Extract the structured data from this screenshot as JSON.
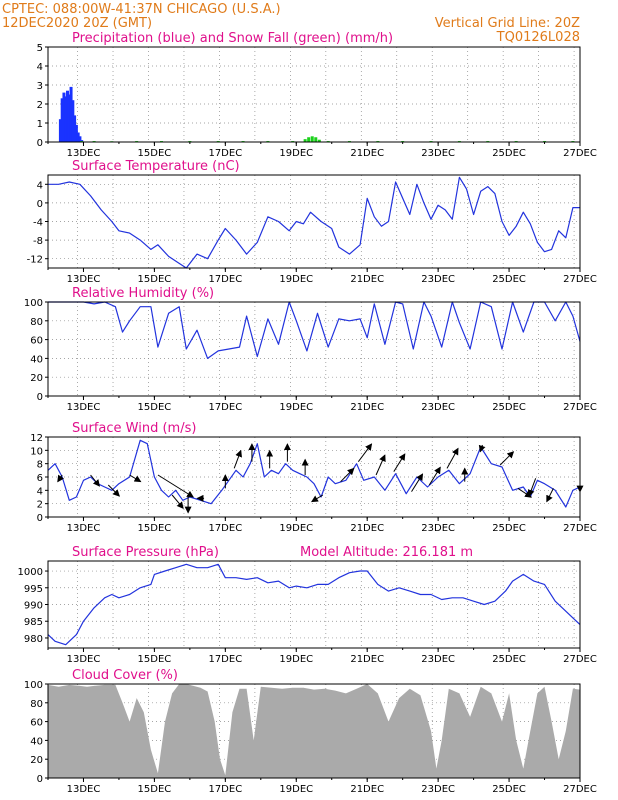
{
  "header": {
    "line1": "CPTEC:   088:00W-41:37N   CHICAGO (U.S.A.)",
    "line2": "12DEC2020 20Z (GMT)",
    "grid_line": "Vertical Grid Line: 20Z",
    "code": "TQ0126L028"
  },
  "colors": {
    "header": "#e07b1a",
    "title": "#e0108c",
    "line": "#2233dd",
    "precip": "#1a33ff",
    "snow": "#1bd11b",
    "cloud": "#aaaaaa"
  },
  "x_ticks": [
    "13DEC",
    "15DEC",
    "17DEC",
    "19DEC",
    "21DEC",
    "23DEC",
    "25DEC",
    "27DEC"
  ],
  "chart_data": [
    {
      "type": "bar",
      "title": "Precipitation (blue) and Snow Fall (green) (mm/h)",
      "ylim": [
        0,
        5
      ],
      "yticks": [
        0,
        1,
        2,
        3,
        4,
        5
      ],
      "series": [
        {
          "name": "Precipitation (blue)",
          "color": "#1a33ff",
          "x": [
            12.35,
            12.4,
            12.45,
            12.5,
            12.55,
            12.6,
            12.65,
            12.7,
            12.75,
            12.8,
            12.85,
            12.9,
            12.95
          ],
          "values": [
            1.2,
            2.3,
            2.6,
            2.4,
            2.7,
            2.5,
            2.9,
            2.2,
            1.4,
            0.9,
            0.5,
            0.3,
            0.1
          ]
        },
        {
          "name": "Snow Fall (green)",
          "color": "#1bd11b",
          "x": [
            12.95,
            13.3,
            13.8,
            14.5,
            15.2,
            16.0,
            16.8,
            17.5,
            18.2,
            18.9,
            19.25,
            19.35,
            19.45,
            19.55,
            19.65,
            19.9,
            20.5,
            21.3,
            22.0,
            22.8,
            23.6,
            24.4,
            25.2,
            26.0,
            26.8
          ],
          "values": [
            0.05,
            0.05,
            0.04,
            0.05,
            0.05,
            0.05,
            0.05,
            0.05,
            0.05,
            0.05,
            0.15,
            0.25,
            0.3,
            0.25,
            0.12,
            0.05,
            0.05,
            0.05,
            0.05,
            0.05,
            0.05,
            0.05,
            0.05,
            0.05,
            0.05
          ]
        }
      ]
    },
    {
      "type": "line",
      "title": "Surface Temperature (nC)",
      "ylim": [
        -14,
        6
      ],
      "yticks": [
        -12,
        -8,
        -4,
        0,
        4
      ],
      "series": [
        {
          "name": "Temperature",
          "x": [
            12.0,
            12.3,
            12.6,
            12.9,
            13.2,
            13.5,
            13.8,
            14.0,
            14.3,
            14.6,
            14.9,
            15.1,
            15.4,
            15.7,
            15.9,
            16.2,
            16.5,
            16.8,
            17.0,
            17.3,
            17.6,
            17.9,
            18.2,
            18.5,
            18.8,
            19.0,
            19.2,
            19.4,
            19.7,
            20.0,
            20.2,
            20.5,
            20.8,
            21.0,
            21.2,
            21.4,
            21.6,
            21.8,
            22.0,
            22.2,
            22.4,
            22.6,
            22.8,
            23.0,
            23.2,
            23.4,
            23.6,
            23.8,
            24.0,
            24.2,
            24.4,
            24.6,
            24.8,
            25.0,
            25.2,
            25.4,
            25.6,
            25.8,
            26.0,
            26.2,
            26.4,
            26.6,
            26.8,
            27.0
          ],
          "values": [
            4.0,
            4.0,
            4.5,
            4.0,
            1.5,
            -1.5,
            -4.0,
            -6.0,
            -6.5,
            -8.0,
            -10.0,
            -9.0,
            -11.5,
            -13.0,
            -14.0,
            -11.0,
            -12.0,
            -8.0,
            -5.5,
            -8.0,
            -11.0,
            -8.5,
            -3.0,
            -4.0,
            -6.0,
            -4.0,
            -4.5,
            -2.0,
            -4.0,
            -5.5,
            -9.5,
            -11.0,
            -9.0,
            1.0,
            -3.0,
            -5.0,
            -4.0,
            4.5,
            1.0,
            -2.5,
            4.0,
            0.0,
            -3.5,
            -0.5,
            -1.5,
            -3.5,
            5.5,
            3.0,
            -2.5,
            2.5,
            3.5,
            2.0,
            -4.0,
            -7.0,
            -5.0,
            -2.0,
            -4.5,
            -8.5,
            -10.5,
            -10.0,
            -6.0,
            -7.5,
            -1.0,
            -1.0
          ]
        }
      ]
    },
    {
      "type": "line",
      "title": "Relative Humidity (%)",
      "ylim": [
        0,
        100
      ],
      "yticks": [
        0,
        20,
        40,
        60,
        80,
        100
      ],
      "series": [
        {
          "name": "Humidity",
          "x": [
            12.0,
            12.5,
            13.0,
            13.3,
            13.6,
            13.9,
            14.1,
            14.3,
            14.6,
            14.9,
            15.1,
            15.4,
            15.7,
            15.9,
            16.2,
            16.5,
            16.8,
            17.1,
            17.4,
            17.6,
            17.9,
            18.2,
            18.5,
            18.8,
            19.0,
            19.3,
            19.6,
            19.9,
            20.2,
            20.5,
            20.8,
            21.0,
            21.2,
            21.5,
            21.8,
            22.0,
            22.3,
            22.6,
            22.8,
            23.1,
            23.4,
            23.6,
            23.9,
            24.2,
            24.5,
            24.8,
            25.1,
            25.4,
            25.7,
            26.0,
            26.3,
            26.6,
            26.8,
            27.0
          ],
          "values": [
            100,
            100,
            100,
            98,
            100,
            95,
            68,
            80,
            95,
            95,
            52,
            88,
            95,
            50,
            70,
            40,
            48,
            50,
            52,
            85,
            42,
            82,
            55,
            100,
            80,
            48,
            88,
            52,
            82,
            80,
            82,
            62,
            98,
            55,
            100,
            98,
            50,
            100,
            85,
            52,
            100,
            78,
            50,
            100,
            95,
            50,
            100,
            68,
            100,
            100,
            80,
            100,
            85,
            58
          ]
        }
      ]
    },
    {
      "type": "line",
      "title": "Surface Wind (m/s)",
      "ylim": [
        0,
        12
      ],
      "yticks": [
        0,
        2,
        4,
        6,
        8,
        10,
        12
      ],
      "series": [
        {
          "name": "Wind speed",
          "x": [
            12.0,
            12.2,
            12.4,
            12.6,
            12.8,
            13.0,
            13.2,
            13.4,
            13.6,
            13.8,
            14.0,
            14.3,
            14.6,
            14.8,
            15.0,
            15.2,
            15.4,
            15.6,
            15.8,
            16.0,
            16.3,
            16.6,
            16.9,
            17.1,
            17.3,
            17.5,
            17.7,
            17.9,
            18.1,
            18.3,
            18.5,
            18.7,
            18.9,
            19.1,
            19.3,
            19.5,
            19.7,
            19.9,
            20.1,
            20.4,
            20.7,
            20.9,
            21.2,
            21.5,
            21.8,
            22.1,
            22.4,
            22.7,
            23.0,
            23.3,
            23.6,
            23.9,
            24.2,
            24.5,
            24.8,
            25.1,
            25.4,
            25.6,
            25.8,
            26.0,
            26.3,
            26.6,
            26.8,
            27.0
          ],
          "values": [
            7.0,
            8.0,
            6.0,
            2.5,
            3.0,
            5.5,
            6.0,
            5.0,
            4.5,
            4.0,
            5.0,
            6.0,
            11.5,
            11.0,
            6.0,
            4.0,
            3.0,
            4.0,
            2.5,
            3.0,
            2.5,
            2.0,
            4.0,
            5.5,
            7.0,
            6.0,
            8.0,
            11.0,
            6.0,
            7.0,
            6.5,
            8.0,
            7.0,
            6.5,
            6.0,
            5.0,
            3.0,
            6.0,
            5.0,
            5.5,
            8.0,
            5.5,
            6.0,
            4.0,
            6.5,
            3.5,
            6.0,
            4.5,
            6.0,
            7.0,
            5.0,
            6.5,
            10.5,
            8.0,
            7.5,
            4.0,
            4.5,
            3.0,
            5.5,
            5.0,
            4.0,
            1.5,
            4.0,
            4.5
          ]
        }
      ]
    },
    {
      "type": "line",
      "title": "Surface Pressure (hPa)",
      "annotation": "Model Altitude: 216.181 m",
      "ylim": [
        977,
        1003
      ],
      "yticks": [
        980,
        985,
        990,
        995,
        1000
      ],
      "series": [
        {
          "name": "Pressure",
          "x": [
            12.0,
            12.2,
            12.5,
            12.8,
            13.0,
            13.3,
            13.6,
            13.8,
            14.0,
            14.3,
            14.6,
            14.9,
            15.0,
            15.3,
            15.6,
            15.9,
            16.2,
            16.5,
            16.8,
            17.0,
            17.3,
            17.6,
            17.9,
            18.2,
            18.5,
            18.8,
            19.0,
            19.3,
            19.6,
            19.9,
            20.2,
            20.5,
            20.8,
            21.0,
            21.3,
            21.6,
            21.9,
            22.2,
            22.5,
            22.8,
            23.1,
            23.4,
            23.7,
            24.0,
            24.3,
            24.6,
            24.9,
            25.1,
            25.4,
            25.7,
            26.0,
            26.3,
            26.6,
            26.8,
            27.0
          ],
          "values": [
            981,
            979,
            978,
            981,
            985,
            989,
            992,
            993,
            992,
            993,
            995,
            996,
            999,
            1000,
            1001,
            1002,
            1001,
            1001,
            1002,
            998,
            998,
            997.5,
            998,
            996.5,
            997,
            995,
            995.5,
            995,
            996,
            996,
            998,
            999.5,
            1000,
            1000,
            996,
            994,
            995,
            994,
            993,
            993,
            991.5,
            992,
            992,
            991,
            990,
            991,
            994,
            997,
            999,
            997,
            996,
            991,
            988,
            986,
            984
          ]
        }
      ]
    },
    {
      "type": "area",
      "title": "Cloud Cover (%)",
      "ylim": [
        0,
        100
      ],
      "yticks": [
        0,
        20,
        40,
        60,
        80,
        100
      ],
      "series": [
        {
          "name": "Cloud cover",
          "x": [
            12.0,
            12.3,
            12.6,
            12.9,
            13.1,
            13.3,
            13.6,
            13.9,
            14.1,
            14.3,
            14.5,
            14.7,
            14.9,
            15.1,
            15.3,
            15.5,
            15.7,
            15.9,
            16.1,
            16.3,
            16.5,
            16.7,
            16.85,
            17.0,
            17.2,
            17.4,
            17.6,
            17.8,
            18.0,
            18.3,
            18.6,
            18.9,
            19.2,
            19.5,
            19.8,
            20.1,
            20.4,
            20.7,
            21.0,
            21.3,
            21.6,
            21.9,
            22.2,
            22.5,
            22.8,
            22.95,
            23.1,
            23.3,
            23.6,
            23.9,
            24.2,
            24.5,
            24.8,
            25.0,
            25.2,
            25.4,
            25.6,
            25.8,
            26.0,
            26.2,
            26.4,
            26.6,
            26.8,
            27.0
          ],
          "values": [
            99,
            97,
            99,
            98,
            97,
            98,
            99,
            99,
            80,
            60,
            85,
            70,
            30,
            5,
            60,
            90,
            100,
            100,
            98,
            96,
            92,
            60,
            20,
            3,
            70,
            95,
            95,
            40,
            97,
            96,
            95,
            96,
            96,
            94,
            95,
            93,
            90,
            95,
            100,
            90,
            60,
            85,
            95,
            88,
            50,
            10,
            40,
            95,
            90,
            65,
            97,
            90,
            60,
            90,
            40,
            10,
            50,
            90,
            97,
            60,
            20,
            50,
            95,
            94
          ]
        }
      ]
    },
    {
      "type": "scatter",
      "title": "Surface Wind direction arrows",
      "series": [
        {
          "name": "Wind vectors",
          "x": [
            12.4,
            13.2,
            13.7,
            14.3,
            15.1,
            15.5,
            15.95,
            16.4,
            17.0,
            17.25,
            17.75,
            18.25,
            18.75,
            19.25,
            19.75,
            20.25,
            20.75,
            21.25,
            21.75,
            22.25,
            22.75,
            23.25,
            23.75,
            24.25,
            24.75,
            25.25,
            25.75,
            26.25,
            27.0
          ],
          "u": [
            -0.2,
            0.4,
            0.5,
            0.5,
            1.6,
            0.5,
            0.0,
            -0.3,
            0.0,
            0.3,
            0.0,
            0.0,
            0.0,
            0.0,
            -0.5,
            0.6,
            0.6,
            0.4,
            0.5,
            0.5,
            0.5,
            0.5,
            0.0,
            -0.1,
            0.6,
            0.6,
            -0.3,
            -0.3,
            0.0
          ],
          "v": [
            -0.3,
            -0.5,
            -0.5,
            -0.3,
            -1.0,
            -0.6,
            -0.8,
            0.0,
            0.6,
            0.8,
            0.8,
            0.8,
            0.8,
            0.7,
            -0.3,
            0.6,
            0.8,
            0.9,
            0.8,
            0.8,
            0.8,
            0.9,
            0.6,
            -0.3,
            0.6,
            -0.4,
            -0.8,
            -0.6,
            -0.3
          ]
        }
      ]
    }
  ]
}
